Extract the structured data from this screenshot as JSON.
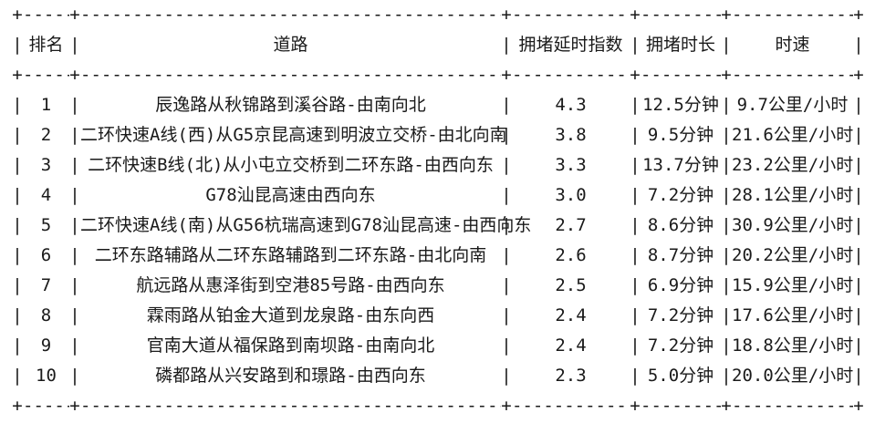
{
  "chart_data": {
    "type": "table",
    "title": "",
    "columns": [
      "排名",
      "道路",
      "拥堵延时指数",
      "拥堵时长",
      "时速"
    ],
    "rows": [
      [
        "1",
        "辰逸路从秋锦路到溪谷路-由南向北",
        "4.3",
        "12.5分钟",
        "9.7公里/小时"
      ],
      [
        "2",
        "二环快速A线(西)从G5京昆高速到明波立交桥-由北向南",
        "3.8",
        "9.5分钟",
        "21.6公里/小时"
      ],
      [
        "3",
        "二环快速B线(北)从小屯立交桥到二环东路-由西向东",
        "3.3",
        "13.7分钟",
        "23.2公里/小时"
      ],
      [
        "4",
        "G78汕昆高速由西向东",
        "3.0",
        "7.2分钟",
        "28.1公里/小时"
      ],
      [
        "5",
        "二环快速A线(南)从G56杭瑞高速到G78汕昆高速-由西向东",
        "2.7",
        "8.6分钟",
        "30.9公里/小时"
      ],
      [
        "6",
        "二环东路辅路从二环东路辅路到二环东路-由北向南",
        "2.6",
        "8.7分钟",
        "20.2公里/小时"
      ],
      [
        "7",
        "航远路从惠泽街到空港85号路-由西向东",
        "2.5",
        "6.9分钟",
        "15.9公里/小时"
      ],
      [
        "8",
        "霖雨路从铂金大道到龙泉路-由东向西",
        "2.4",
        "7.2分钟",
        "17.6公里/小时"
      ],
      [
        "9",
        "官南大道从福保路到南坝路-由南向北",
        "2.4",
        "7.2分钟",
        "18.8公里/小时"
      ],
      [
        "10",
        "磷都路从兴安路到和璟路-由西向东",
        "2.3",
        "5.0分钟",
        "20.0公里/小时"
      ]
    ],
    "layout": {
      "border_style": "ascii-plus-dash",
      "grid": "outer-and-header-borders-only",
      "text_color": "#1a1a1a",
      "background_color": "#ffffff"
    }
  }
}
